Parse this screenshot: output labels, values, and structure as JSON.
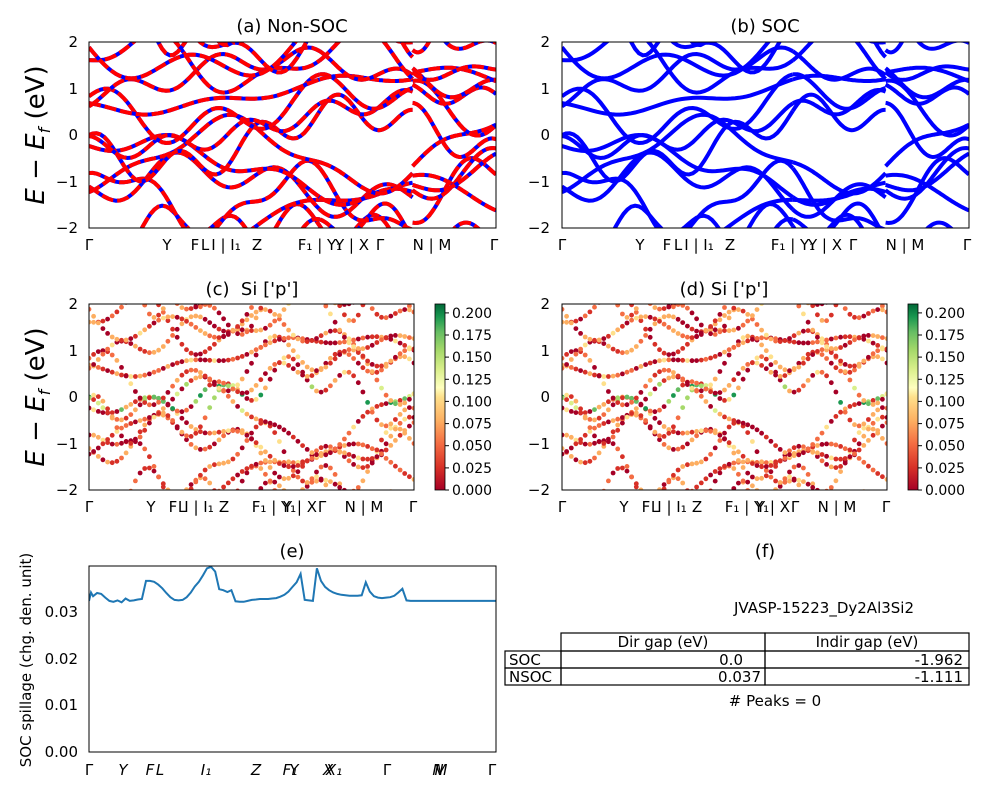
{
  "chart_data": [
    {
      "panel": "a",
      "type": "line",
      "title": "(a) Non-SOC",
      "ylabel": "E - E_f (eV)",
      "ylim": [
        -2,
        2
      ],
      "yticks": [
        "2",
        "1",
        "0",
        "−1",
        "−2"
      ],
      "xticks": [
        "Γ",
        "Y",
        "F",
        "L",
        "I | I₁",
        "Z",
        "F₁ | Y₁",
        "Y | X",
        "Γ",
        "N | M",
        "Γ"
      ],
      "colors": {
        "solid": "#0000ff",
        "dashed": "#ff0000"
      }
    },
    {
      "panel": "b",
      "type": "line",
      "title": "(b) SOC",
      "ylim": [
        -2,
        2
      ],
      "yticks": [
        "2",
        "1",
        "0",
        "−1",
        "−2"
      ],
      "xticks": [
        "Γ",
        "Y",
        "F",
        "L",
        "I | I₁",
        "Z",
        "F₁ | Y₁",
        "Y | X",
        "Γ",
        "N | M",
        "Γ"
      ],
      "colors": {
        "solid": "#0000ff"
      }
    },
    {
      "panel": "c",
      "type": "scatter",
      "title": "(c)  Si ['p']",
      "ylabel": "E - E_f (eV)",
      "ylim": [
        -2,
        2
      ],
      "yticks": [
        "2",
        "1",
        "0",
        "−1",
        "−2"
      ],
      "xticks": [
        "Γ",
        "Y",
        "F",
        "L",
        "I | I₁",
        "Z",
        "F₁ | Y₁",
        "Y | X",
        "Γ",
        "N | M",
        "Γ"
      ],
      "colorbar": {
        "ticks": [
          "0.200",
          "0.175",
          "0.150",
          "0.125",
          "0.100",
          "0.075",
          "0.050",
          "0.025",
          "0.000"
        ],
        "range": [
          0,
          0.21
        ],
        "colormap": "RdYlGn"
      }
    },
    {
      "panel": "d",
      "type": "scatter",
      "title": "(d) Si ['p']",
      "ylim": [
        -2,
        2
      ],
      "yticks": [
        "2",
        "1",
        "0",
        "−1",
        "−2"
      ],
      "xticks": [
        "Γ",
        "Y",
        "F",
        "L",
        "I | I₁",
        "Z",
        "F₁ | Y₁",
        "Y | X",
        "Γ",
        "N | M",
        "Γ"
      ],
      "colorbar": {
        "ticks": [
          "0.200",
          "0.175",
          "0.150",
          "0.125",
          "0.100",
          "0.075",
          "0.050",
          "0.025",
          "0.000"
        ],
        "range": [
          0,
          0.21
        ],
        "colormap": "RdYlGn"
      }
    },
    {
      "panel": "e",
      "type": "line",
      "title": "(e)",
      "ylabel": "SOC spillage (chg. den. unit)",
      "ylim": [
        0,
        0.04
      ],
      "yticks": [
        "0.03",
        "0.02",
        "0.01",
        "0.00"
      ],
      "xticks": [
        "Γ",
        "Y",
        "F",
        "L",
        "I₁",
        "Z",
        "F₁",
        "Y",
        "X",
        "X₁",
        "Γ",
        "N",
        "M",
        "Γ"
      ],
      "x": [
        0,
        0.5,
        1,
        2,
        3,
        4,
        5,
        6,
        7,
        8,
        9,
        10,
        11,
        12,
        13,
        14,
        15,
        16,
        17,
        18,
        19,
        20,
        21,
        22,
        23,
        24,
        25,
        26,
        27,
        28,
        29,
        30,
        31,
        32,
        33,
        34,
        35,
        36,
        37,
        38,
        39,
        40,
        41,
        42,
        43,
        44,
        45,
        46,
        47,
        48,
        49,
        50,
        51,
        52,
        53,
        54,
        55,
        56,
        57,
        58,
        59,
        60,
        61,
        62,
        63,
        64,
        65,
        66,
        67,
        68,
        69,
        70,
        71,
        72,
        73,
        74,
        75,
        76,
        77,
        78,
        79,
        80,
        81,
        82,
        83,
        84,
        85,
        86,
        87,
        88,
        89,
        90,
        91,
        92,
        93,
        94,
        95,
        96,
        97,
        98,
        99,
        100
      ],
      "values": [
        0.0325,
        0.0343,
        0.0335,
        0.0342,
        0.034,
        0.0332,
        0.0325,
        0.0323,
        0.0326,
        0.0322,
        0.033,
        0.0325,
        0.0326,
        0.0328,
        0.0329,
        0.0368,
        0.0368,
        0.0366,
        0.036,
        0.0352,
        0.0342,
        0.0333,
        0.0327,
        0.0326,
        0.0327,
        0.0333,
        0.0343,
        0.0356,
        0.0366,
        0.038,
        0.0395,
        0.0398,
        0.0388,
        0.035,
        0.0348,
        0.0344,
        0.0348,
        0.0324,
        0.0323,
        0.0323,
        0.0325,
        0.0327,
        0.0328,
        0.0329,
        0.0329,
        0.0329,
        0.033,
        0.0331,
        0.0334,
        0.0338,
        0.0345,
        0.0355,
        0.0365,
        0.0383,
        0.0327,
        0.0326,
        0.0325,
        0.0395,
        0.0368,
        0.0355,
        0.0348,
        0.0343,
        0.034,
        0.0338,
        0.0337,
        0.0336,
        0.0336,
        0.0336,
        0.0337,
        0.0365,
        0.0345,
        0.0335,
        0.0332,
        0.0331,
        0.0332,
        0.0333,
        0.0336,
        0.0343,
        0.0351,
        0.0326,
        0.0325,
        0.0325,
        0.0325,
        0.0325,
        0.0325,
        0.0325,
        0.0325,
        0.0325,
        0.0325,
        0.0325,
        0.0325,
        0.0325,
        0.0325,
        0.0325,
        0.0325,
        0.0325,
        0.0325,
        0.0325,
        0.0325,
        0.0325,
        0.0325,
        0.0325
      ],
      "color": "#1f77b4"
    },
    {
      "panel": "f",
      "type": "table",
      "title": "(f)",
      "subtitle": "JVASP-15223_Dy2Al3Si2",
      "columns": [
        "",
        "Dir gap (eV)",
        "Indir gap (eV)"
      ],
      "rows": [
        [
          "SOC",
          "0.0",
          "-1.962"
        ],
        [
          "NSOC",
          "0.037",
          "-1.111"
        ]
      ],
      "footer": "# Peaks = 0"
    }
  ]
}
